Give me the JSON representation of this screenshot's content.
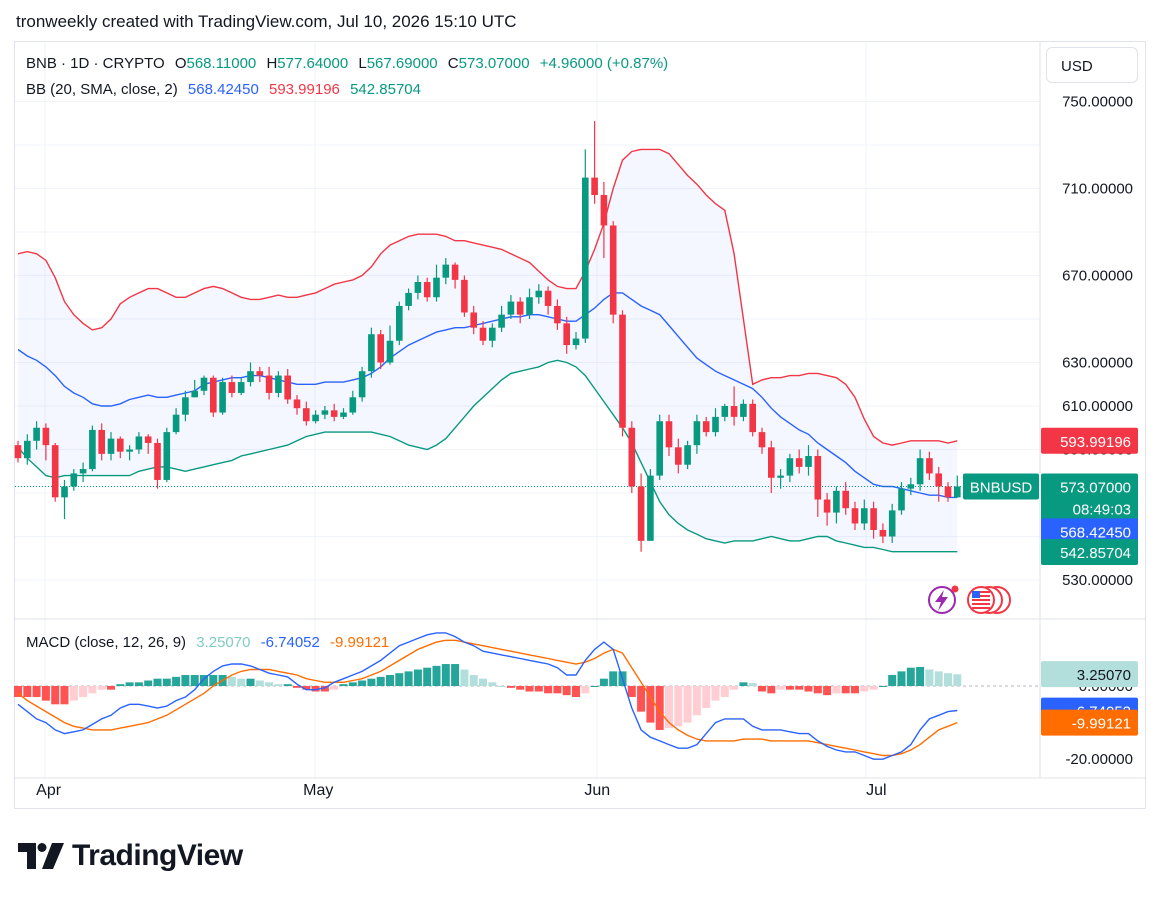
{
  "header": {
    "text": "tronweekly created with TradingView.com, Jul 10, 2026 15:10 UTC"
  },
  "legend": {
    "symbol": "BNB · 1D · CRYPTO",
    "o_label": "O",
    "o_value": "568.11000",
    "h_label": "H",
    "h_value": "577.64000",
    "l_label": "L",
    "l_value": "567.69000",
    "c_label": "C",
    "c_value": "573.07000",
    "change": "+4.96000 (+0.87%)",
    "bb_label": "BB (20, SMA, close, 2)",
    "bb_mid": "568.42450",
    "bb_upper": "593.99196",
    "bb_lower": "542.85704"
  },
  "macd_legend": {
    "label": "MACD (close, 12, 26, 9)",
    "hist": "3.25070",
    "macd": "-6.74052",
    "signal": "-9.99121"
  },
  "currency_button": "USD",
  "price_tags": {
    "upper": "593.99196",
    "symbol": "BNBUSD",
    "close": "573.07000",
    "countdown": "08:49:03",
    "mid": "568.42450",
    "lower": "542.85704",
    "macd_hist": "3.25070",
    "macd": "-6.74052",
    "signal": "-9.99121"
  },
  "colors": {
    "up": "#089981",
    "down": "#f23645",
    "bb_mid": "#2962ff",
    "bb_upper": "#f23645",
    "bb_lower": "#089981",
    "macd": "#2962ff",
    "signal": "#ff6d00",
    "hist_up_strong": "#26a69a",
    "hist_up_weak": "#b2dfdb",
    "hist_down_strong": "#ff5252",
    "hist_down_weak": "#ffcdd2"
  },
  "icons": [
    "flash-event-icon",
    "us-flag-event-icon"
  ],
  "footer": {
    "brand": "TradingView"
  },
  "chart_data": [
    {
      "type": "candlestick",
      "title": "BNB · 1D · CRYPTO",
      "y_ticks": [
        "750.00000",
        "710.00000",
        "670.00000",
        "630.00000",
        "610.00000",
        "590.00000",
        "550.00000",
        "530.00000"
      ],
      "x_ticks": [
        "Apr",
        "May",
        "Jun",
        "Jul"
      ],
      "ylim": [
        520,
        752
      ],
      "candles": [
        [
          592,
          586,
          594,
          584
        ],
        [
          586,
          594,
          597,
          583
        ],
        [
          594,
          600,
          603,
          590
        ],
        [
          600,
          592,
          602,
          585
        ],
        [
          592,
          568,
          593,
          566
        ],
        [
          568,
          573,
          576,
          558
        ],
        [
          573,
          579,
          581,
          571
        ],
        [
          579,
          581,
          584,
          575
        ],
        [
          581,
          599,
          601,
          580
        ],
        [
          599,
          588,
          602,
          585
        ],
        [
          588,
          595,
          598,
          585
        ],
        [
          595,
          589,
          596,
          586
        ],
        [
          589,
          590,
          592,
          585
        ],
        [
          590,
          596,
          598,
          588
        ],
        [
          596,
          593,
          597,
          588
        ],
        [
          593,
          576,
          595,
          572
        ],
        [
          576,
          598,
          600,
          575
        ],
        [
          598,
          606,
          609,
          597
        ],
        [
          606,
          614,
          617,
          603
        ],
        [
          614,
          617,
          622,
          614
        ],
        [
          617,
          623,
          624,
          615
        ],
        [
          623,
          607,
          624,
          605
        ],
        [
          607,
          621,
          623,
          606
        ],
        [
          621,
          616,
          624,
          614
        ],
        [
          616,
          621,
          623,
          615
        ],
        [
          621,
          626,
          630,
          619
        ],
        [
          626,
          624,
          628,
          621
        ],
        [
          624,
          616,
          628,
          613
        ],
        [
          616,
          624,
          626,
          614
        ],
        [
          624,
          613,
          627,
          611
        ],
        [
          613,
          609,
          615,
          606
        ],
        [
          609,
          603,
          612,
          601
        ],
        [
          603,
          606,
          608,
          602
        ],
        [
          606,
          608,
          610,
          604
        ],
        [
          608,
          605,
          611,
          603
        ],
        [
          605,
          607,
          609,
          604
        ],
        [
          607,
          614,
          617,
          606
        ],
        [
          614,
          626,
          628,
          612
        ],
        [
          626,
          643,
          646,
          623
        ],
        [
          643,
          630,
          645,
          627
        ],
        [
          630,
          640,
          647,
          629
        ],
        [
          640,
          656,
          658,
          638
        ],
        [
          656,
          662,
          664,
          654
        ],
        [
          662,
          667,
          670,
          659
        ],
        [
          667,
          660,
          669,
          658
        ],
        [
          660,
          669,
          675,
          658
        ],
        [
          669,
          675,
          678,
          666
        ],
        [
          675,
          668,
          676,
          664
        ],
        [
          668,
          653,
          670,
          651
        ],
        [
          653,
          646,
          656,
          643
        ],
        [
          646,
          640,
          649,
          638
        ],
        [
          640,
          646,
          648,
          637
        ],
        [
          646,
          652,
          656,
          644
        ],
        [
          652,
          658,
          661,
          650
        ],
        [
          658,
          652,
          660,
          648
        ],
        [
          652,
          660,
          664,
          650
        ],
        [
          660,
          663,
          666,
          657
        ],
        [
          663,
          656,
          665,
          652
        ],
        [
          656,
          648,
          659,
          645
        ],
        [
          648,
          638,
          651,
          634
        ],
        [
          638,
          641,
          644,
          636
        ],
        [
          641,
          715,
          728,
          639
        ],
        [
          715,
          707,
          741,
          703
        ],
        [
          707,
          693,
          713,
          678
        ],
        [
          693,
          652,
          695,
          648
        ],
        [
          652,
          600,
          654,
          596
        ],
        [
          600,
          573,
          603,
          570
        ],
        [
          573,
          548,
          579,
          543
        ],
        [
          548,
          578,
          581,
          550
        ],
        [
          578,
          603,
          606,
          576
        ],
        [
          603,
          591,
          606,
          587
        ],
        [
          591,
          583,
          595,
          579
        ],
        [
          583,
          592,
          594,
          581
        ],
        [
          592,
          603,
          606,
          588
        ],
        [
          603,
          598,
          605,
          596
        ],
        [
          598,
          605,
          609,
          596
        ],
        [
          605,
          610,
          611,
          603
        ],
        [
          610,
          605,
          619,
          601
        ],
        [
          605,
          611,
          613,
          603
        ],
        [
          611,
          598,
          613,
          596
        ],
        [
          598,
          591,
          600,
          588
        ],
        [
          591,
          577,
          594,
          570
        ],
        [
          577,
          578,
          581,
          572
        ],
        [
          578,
          586,
          588,
          575
        ],
        [
          586,
          582,
          590,
          579
        ],
        [
          582,
          587,
          592,
          578
        ],
        [
          587,
          567,
          590,
          559
        ],
        [
          567,
          561,
          570,
          555
        ],
        [
          561,
          571,
          573,
          556
        ],
        [
          571,
          563,
          575,
          560
        ],
        [
          563,
          556,
          566,
          553
        ],
        [
          556,
          563,
          567,
          553
        ],
        [
          563,
          553,
          566,
          549
        ],
        [
          553,
          550,
          556,
          547
        ],
        [
          550,
          562,
          565,
          547
        ],
        [
          562,
          572,
          575,
          560
        ],
        [
          572,
          574,
          577,
          569
        ],
        [
          574,
          586,
          590,
          571
        ],
        [
          586,
          579,
          589,
          576
        ],
        [
          579,
          573,
          582,
          566
        ],
        [
          573,
          568,
          575,
          566
        ],
        [
          568,
          573,
          578,
          568
        ]
      ],
      "bb_upper": [
        680,
        681,
        680,
        677,
        669,
        658,
        652,
        648,
        645,
        646,
        650,
        657,
        660,
        662,
        664,
        664,
        662,
        660,
        660,
        662,
        664,
        665,
        664,
        662,
        660,
        659,
        659,
        660,
        661,
        660,
        660,
        661,
        662,
        664,
        666,
        667,
        668,
        670,
        674,
        680,
        684,
        686,
        688,
        689,
        689,
        689,
        688,
        686,
        686,
        685,
        684,
        683,
        682,
        680,
        678,
        676,
        672,
        668,
        665,
        664,
        664,
        672,
        682,
        694,
        710,
        723,
        727,
        728,
        728,
        728,
        726,
        721,
        716,
        712,
        707,
        703,
        700,
        680,
        650,
        620,
        622,
        623,
        623,
        624,
        624,
        625,
        625,
        624,
        623,
        620,
        614,
        604,
        596,
        593,
        592,
        593,
        594,
        594,
        594,
        594,
        593,
        594
      ],
      "bb_mid": [
        636,
        633,
        631,
        628,
        624,
        619,
        616,
        614,
        611,
        610,
        610,
        611,
        613,
        614,
        615,
        614,
        614,
        615,
        616,
        617,
        620,
        621,
        622,
        623,
        623,
        624,
        624,
        623,
        622,
        621,
        620,
        620,
        620,
        621,
        621,
        621,
        622,
        623,
        625,
        628,
        632,
        635,
        638,
        640,
        642,
        644,
        645,
        646,
        646,
        647,
        648,
        649,
        650,
        651,
        651,
        652,
        652,
        651,
        650,
        649,
        649,
        652,
        655,
        659,
        662,
        662,
        659,
        656,
        654,
        652,
        647,
        642,
        637,
        632,
        629,
        626,
        624,
        622,
        620,
        618,
        614,
        609,
        605,
        602,
        599,
        597,
        593,
        590,
        587,
        584,
        580,
        577,
        574,
        573,
        573,
        572,
        571,
        570,
        569,
        569,
        568,
        568
      ],
      "bb_lower": [
        591,
        586,
        582,
        578,
        577,
        578,
        578,
        578,
        578,
        578,
        578,
        578,
        578,
        580,
        581,
        582,
        582,
        581,
        580,
        581,
        582,
        583,
        584,
        585,
        587,
        588,
        589,
        590,
        591,
        592,
        594,
        596,
        597,
        598,
        598,
        598,
        598,
        598,
        598,
        597,
        596,
        594,
        592,
        591,
        590,
        592,
        595,
        600,
        605,
        610,
        614,
        618,
        622,
        625,
        626,
        627,
        628,
        630,
        631,
        630,
        628,
        624,
        618,
        612,
        606,
        600,
        593,
        584,
        575,
        566,
        560,
        556,
        553,
        551,
        549,
        548,
        547,
        548,
        548,
        548,
        549,
        550,
        549,
        548,
        548,
        549,
        550,
        550,
        548,
        547,
        546,
        545,
        545,
        544,
        543,
        543,
        543,
        543,
        543,
        543,
        543,
        543
      ],
      "ticker": "BNBUSD"
    },
    {
      "type": "bar",
      "title": "MACD (close, 12, 26, 9)",
      "y_ticks": [
        "0.00000",
        "-20.00000"
      ],
      "ylim": [
        -24,
        16
      ],
      "histogram": [
        -3,
        -3,
        -3,
        -4,
        -5,
        -5,
        -4,
        -3,
        -2,
        -1,
        -1,
        0.5,
        1,
        1,
        1.5,
        2,
        2,
        2.5,
        3,
        3,
        3,
        3,
        3,
        2.5,
        2,
        2,
        1.5,
        1,
        0.5,
        0.5,
        -0.5,
        -1,
        -1.5,
        -1.5,
        -1,
        0.5,
        1,
        1.5,
        2,
        2.5,
        3,
        3.5,
        4,
        4.5,
        5,
        5.5,
        6,
        6,
        4.5,
        3,
        2,
        1,
        0,
        -0.5,
        -1,
        -1.5,
        -1.5,
        -2,
        -2,
        -2.5,
        -3,
        -2,
        0,
        2,
        4,
        4,
        -3,
        -7,
        -10,
        -12,
        -11.5,
        -11,
        -10,
        -8,
        -6,
        -4,
        -3,
        -1,
        1,
        0.8,
        -1.5,
        -2,
        -1,
        -1,
        -1,
        -1.5,
        -2,
        -2.5,
        -2,
        -2,
        -2,
        -1.5,
        -1,
        0,
        3,
        4,
        5,
        5.2,
        4.5,
        4,
        3.5,
        3.2
      ],
      "macd": [
        -5,
        -7,
        -9,
        -10,
        -12,
        -13,
        -12.5,
        -12,
        -10.5,
        -9,
        -8,
        -6,
        -5,
        -5,
        -5.5,
        -6,
        -5.5,
        -4,
        -3,
        -1,
        2,
        4,
        5.5,
        6,
        6,
        5.5,
        4.5,
        3.5,
        3,
        2.5,
        0.5,
        -1,
        -1,
        -0.5,
        1,
        2,
        3,
        4,
        5.5,
        7,
        9,
        11,
        12,
        13,
        14,
        14.5,
        14.5,
        13.5,
        12,
        11,
        9.5,
        9,
        8.5,
        8,
        7.5,
        7,
        6.5,
        6,
        5,
        3,
        3,
        7,
        10,
        12,
        10,
        2,
        -6,
        -12,
        -14,
        -15,
        -16,
        -17,
        -17,
        -16,
        -13,
        -10,
        -9,
        -9,
        -9,
        -11,
        -12,
        -12,
        -12,
        -12.5,
        -13,
        -13,
        -15,
        -16.5,
        -17.5,
        -18,
        -18,
        -19,
        -20,
        -20,
        -19,
        -18,
        -16,
        -12,
        -9,
        -8,
        -7,
        -6.7
      ],
      "signal": [
        -2,
        -4,
        -5.5,
        -7,
        -8.5,
        -10,
        -11,
        -11.5,
        -12,
        -12,
        -12,
        -11.5,
        -11,
        -10.5,
        -10,
        -9,
        -8,
        -6.5,
        -5,
        -3.5,
        -2,
        0,
        1.5,
        3,
        4,
        4.5,
        4.5,
        4.5,
        4,
        3.5,
        3,
        2,
        1.5,
        1,
        1,
        1,
        1.5,
        2,
        3,
        4,
        5.5,
        7,
        8.5,
        10,
        11,
        12,
        12.5,
        12.5,
        12,
        11.5,
        11,
        10.5,
        10,
        9.5,
        9,
        8.5,
        8,
        7.5,
        7,
        6.5,
        6,
        6.5,
        7.5,
        9,
        10,
        9,
        5,
        1,
        -3,
        -7,
        -10,
        -12,
        -13.5,
        -14.5,
        -15,
        -15,
        -15,
        -15,
        -14.5,
        -14.5,
        -14.5,
        -15,
        -15,
        -15,
        -15,
        -15,
        -15.5,
        -16,
        -16.5,
        -17,
        -17.5,
        -18,
        -18.5,
        -19,
        -19,
        -18.5,
        -17.5,
        -16,
        -14,
        -12,
        -11,
        -10
      ]
    }
  ]
}
